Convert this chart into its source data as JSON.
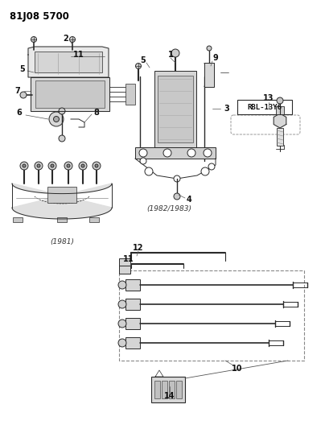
{
  "title": "81J08 5700",
  "bg_color": "#ffffff",
  "label_1981": "(1981)",
  "label_1982": "(1982/1983)",
  "spark_plug_label": "RBL-13Y6",
  "lc": "#2a2a2a",
  "lw": 0.7,
  "fig_w": 4.04,
  "fig_h": 5.33,
  "dpi": 100
}
